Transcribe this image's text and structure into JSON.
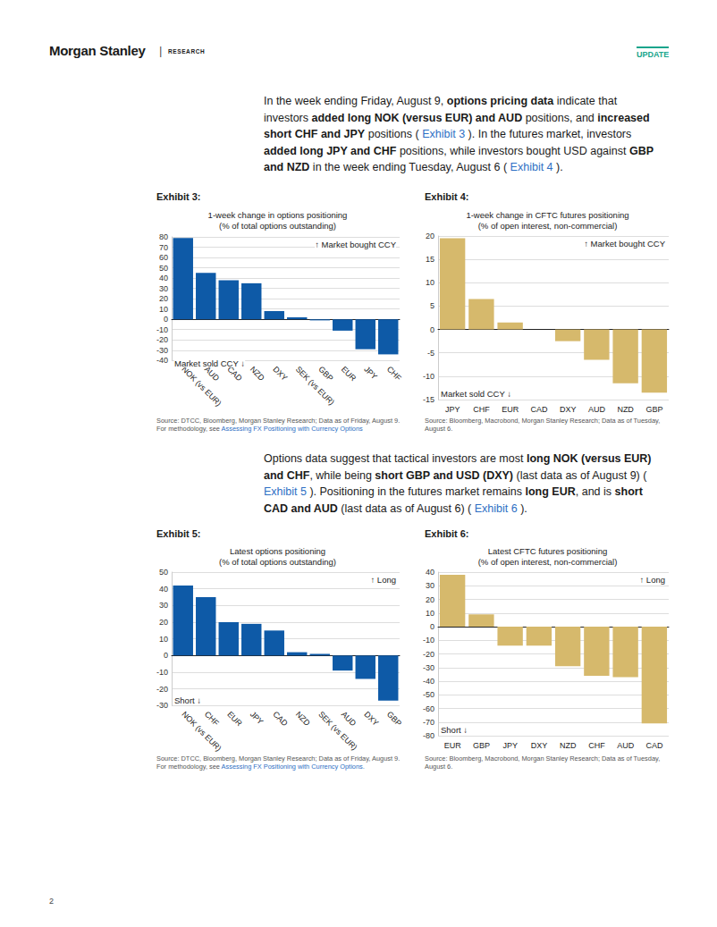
{
  "header": {
    "brand": "Morgan Stanley",
    "separator": "|",
    "section": "RESEARCH",
    "tag": "UPDATE"
  },
  "paragraphs": [
    [
      {
        "text": "In the week ending Friday, August 9, ",
        "style": "plain"
      },
      {
        "text": "options pricing data",
        "style": "bold"
      },
      {
        "text": " indicate that investors ",
        "style": "plain"
      },
      {
        "text": "added long NOK (versus EUR) and AUD",
        "style": "bold"
      },
      {
        "text": " positions, and ",
        "style": "plain"
      },
      {
        "text": "increased short CHF and JPY",
        "style": "bold"
      },
      {
        "text": " positions ( ",
        "style": "plain"
      },
      {
        "text": "Exhibit 3",
        "style": "link"
      },
      {
        "text": " ). In the futures market, investors ",
        "style": "plain"
      },
      {
        "text": "added long JPY and CHF",
        "style": "bold"
      },
      {
        "text": " positions, while investors bought USD against ",
        "style": "plain"
      },
      {
        "text": "GBP and NZD",
        "style": "bold"
      },
      {
        "text": " in the week ending Tuesday, August 6 ( ",
        "style": "plain"
      },
      {
        "text": "Exhibit 4",
        "style": "link"
      },
      {
        "text": " ).",
        "style": "plain"
      }
    ],
    [
      {
        "text": "Options data suggest that tactical investors are most ",
        "style": "plain"
      },
      {
        "text": "long NOK (versus EUR) and CHF",
        "style": "bold"
      },
      {
        "text": ", while being ",
        "style": "plain"
      },
      {
        "text": "short GBP and USD (DXY)",
        "style": "bold"
      },
      {
        "text": " (last data as of August 9) ( ",
        "style": "plain"
      },
      {
        "text": "Exhibit 5",
        "style": "link"
      },
      {
        "text": " ). Positioning in the futures market remains ",
        "style": "plain"
      },
      {
        "text": "long EUR",
        "style": "bold"
      },
      {
        "text": ", and is ",
        "style": "plain"
      },
      {
        "text": "short CAD and AUD",
        "style": "bold"
      },
      {
        "text": " (last data as of August 6) ( ",
        "style": "plain"
      },
      {
        "text": "Exhibit 6",
        "style": "link"
      },
      {
        "text": " ).",
        "style": "plain"
      }
    ]
  ],
  "exhibits": [
    {
      "label": "Exhibit 3:",
      "source": [
        {
          "text": "Source: DTCC, Bloomberg, Morgan Stanley Research; Data as of Friday, August 9. For methodology, see ",
          "style": "plain"
        },
        {
          "text": "Assessing FX Positioning with Currency Options",
          "style": "link"
        }
      ]
    },
    {
      "label": "Exhibit 4:",
      "source": [
        {
          "text": "Source: Bloomberg, Macrobond, Morgan Stanley Research; Data as of Tuesday, August 6.",
          "style": "plain"
        }
      ]
    },
    {
      "label": "Exhibit 5:",
      "source": [
        {
          "text": "Source: DTCC, Bloomberg, Morgan Stanley Research; Data as of Friday, August 9. For methodology, see ",
          "style": "plain"
        },
        {
          "text": "Assessing FX Positioning with Currency Options.",
          "style": "link"
        }
      ]
    },
    {
      "label": "Exhibit 6:",
      "source": [
        {
          "text": "Source: Bloomberg, Macrobond, Morgan Stanley Research; Data as of Tuesday, August 6.",
          "style": "plain"
        }
      ]
    }
  ],
  "chart_data": [
    {
      "type": "bar",
      "title": "1-week change in options positioning",
      "subtitle": "(% of total options outstanding)",
      "categories": [
        "NOK (vs EUR)",
        "AUD",
        "CAD",
        "NZD",
        "DXY",
        "SEK (vs EUR)",
        "GBP",
        "EUR",
        "JPY",
        "CHF"
      ],
      "values": [
        79,
        45,
        38,
        35,
        8,
        2,
        -1,
        -11,
        -29,
        -34
      ],
      "color": "#0e5aa7",
      "ylim": [
        -40,
        80
      ],
      "yticks": [
        -40,
        -30,
        -20,
        -10,
        0,
        10,
        20,
        30,
        40,
        50,
        60,
        70,
        80
      ],
      "grid": true,
      "annotations": [
        "↑ Market bought CCY",
        "Market sold CCY ↓"
      ]
    },
    {
      "type": "bar",
      "title": "1-week change in CFTC futures positioning",
      "subtitle": "(% of open interest, non-commercial)",
      "categories": [
        "JPY",
        "CHF",
        "EUR",
        "CAD",
        "DXY",
        "AUD",
        "NZD",
        "GBP"
      ],
      "values": [
        19.5,
        6.5,
        1.5,
        0,
        -2.5,
        -6.5,
        -11.5,
        -13.5
      ],
      "color": "#d6b96c",
      "ylim": [
        -15,
        20
      ],
      "yticks": [
        -15,
        -10,
        -5,
        0,
        5,
        10,
        15,
        20
      ],
      "grid": true,
      "annotations": [
        "↑ Market bought CCY",
        "Market sold CCY ↓"
      ]
    },
    {
      "type": "bar",
      "title": "Latest options positioning",
      "subtitle": "(% of total options outstanding)",
      "categories": [
        "NOK (vs EUR)",
        "CHF",
        "EUR",
        "JPY",
        "CAD",
        "NZD",
        "SEK (vs EUR)",
        "AUD",
        "DXY",
        "GBP"
      ],
      "values": [
        42,
        35,
        20,
        19,
        15,
        2,
        1,
        -9,
        -14,
        -27
      ],
      "color": "#0e5aa7",
      "ylim": [
        -30,
        50
      ],
      "yticks": [
        -30,
        -20,
        -10,
        0,
        10,
        20,
        30,
        40,
        50
      ],
      "grid": true,
      "annotations": [
        "↑ Long",
        "Short ↓"
      ]
    },
    {
      "type": "bar",
      "title": "Latest CFTC futures positioning",
      "subtitle": "(% of open interest, non-commercial)",
      "categories": [
        "EUR",
        "GBP",
        "JPY",
        "DXY",
        "NZD",
        "CHF",
        "AUD",
        "CAD"
      ],
      "values": [
        38,
        9,
        -14,
        -14,
        -29,
        -36,
        -37,
        -71
      ],
      "color": "#d6b96c",
      "ylim": [
        -80,
        40
      ],
      "yticks": [
        -80,
        -70,
        -60,
        -50,
        -40,
        -30,
        -20,
        -10,
        0,
        10,
        20,
        30,
        40
      ],
      "grid": true,
      "annotations": [
        "↑ Long",
        "Short ↓"
      ]
    }
  ],
  "page_number": 2
}
